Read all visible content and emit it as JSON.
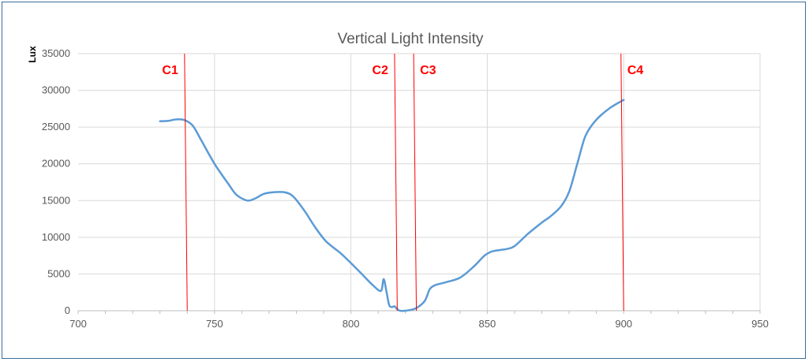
{
  "chart_data": {
    "type": "scatter",
    "title": "Vertical Light Intensity",
    "xlabel": "",
    "ylabel": "Lux",
    "xlim": [
      700,
      950
    ],
    "ylim": [
      0,
      35000
    ],
    "x_ticks": [
      700,
      750,
      800,
      850,
      900,
      950
    ],
    "y_ticks": [
      0,
      5000,
      10000,
      15000,
      20000,
      25000,
      30000,
      35000
    ],
    "grid": true,
    "legend": "none",
    "series": [
      {
        "color": "#5b9bd5",
        "points": [
          [
            730,
            25800
          ],
          [
            733,
            25850
          ],
          [
            736,
            26050
          ],
          [
            739,
            25950
          ],
          [
            742,
            25200
          ],
          [
            745,
            23300
          ],
          [
            750,
            20000
          ],
          [
            755,
            17300
          ],
          [
            758,
            15800
          ],
          [
            762,
            15000
          ],
          [
            765,
            15300
          ],
          [
            768,
            15900
          ],
          [
            772,
            16150
          ],
          [
            776,
            16100
          ],
          [
            779,
            15500
          ],
          [
            783,
            13600
          ],
          [
            787,
            11300
          ],
          [
            791,
            9400
          ],
          [
            796,
            7900
          ],
          [
            800,
            6500
          ],
          [
            804,
            5000
          ],
          [
            808,
            3500
          ],
          [
            811,
            2700
          ],
          [
            812,
            4300
          ],
          [
            813,
            2700
          ],
          [
            814,
            800
          ],
          [
            815,
            500
          ],
          [
            816,
            600
          ],
          [
            817,
            200
          ],
          [
            818,
            0
          ],
          [
            820,
            0
          ],
          [
            823,
            200
          ],
          [
            825,
            600
          ],
          [
            827,
            1300
          ],
          [
            828,
            2100
          ],
          [
            829,
            3000
          ],
          [
            831,
            3500
          ],
          [
            835,
            3900
          ],
          [
            840,
            4500
          ],
          [
            845,
            6000
          ],
          [
            849,
            7500
          ],
          [
            852,
            8100
          ],
          [
            857,
            8400
          ],
          [
            860,
            8800
          ],
          [
            865,
            10500
          ],
          [
            870,
            12000
          ],
          [
            873,
            12800
          ],
          [
            877,
            14200
          ],
          [
            880,
            16200
          ],
          [
            883,
            20000
          ],
          [
            886,
            23800
          ],
          [
            890,
            26000
          ],
          [
            895,
            27600
          ],
          [
            900,
            28700
          ]
        ]
      }
    ],
    "markers": [
      {
        "label": "C1",
        "x_top": 739,
        "x_bottom": 740,
        "color": "#ff0000"
      },
      {
        "label": "C2",
        "x_top": 816,
        "x_bottom": 817,
        "color": "#ff0000"
      },
      {
        "label": "C3",
        "x_top": 823,
        "x_bottom": 824,
        "color": "#ff0000"
      },
      {
        "label": "C4",
        "x_top": 899,
        "x_bottom": 900,
        "color": "#ff0000"
      }
    ],
    "colors": {
      "grid": "#d9d9d9",
      "axis": "#bfbfbf",
      "text": "#595959",
      "marker": "#ff0000",
      "line": "#5b9bd5"
    }
  }
}
